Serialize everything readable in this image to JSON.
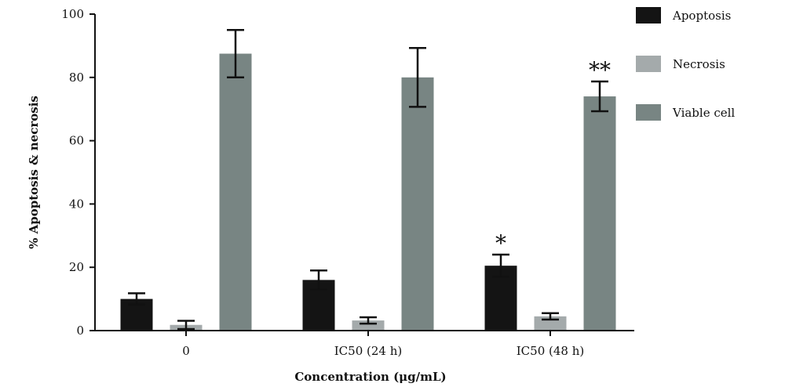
{
  "chart_data": {
    "type": "bar",
    "categories": [
      "0",
      "IC50 (24 h)",
      "IC50 (48 h)"
    ],
    "series": [
      {
        "name": "Apoptosis",
        "color": "#141414",
        "values": [
          10,
          16,
          20.5
        ],
        "errors": [
          1.8,
          3,
          3.5
        ]
      },
      {
        "name": "Necrosis",
        "color": "#a4aaab",
        "values": [
          1.8,
          3.2,
          4.5
        ],
        "errors": [
          1.3,
          1,
          1
        ]
      },
      {
        "name": "Viable cell",
        "color": "#788583",
        "values": [
          87.5,
          80,
          74
        ],
        "errors": [
          7.5,
          9.3,
          4.7
        ]
      }
    ],
    "annotations": [
      {
        "category": "IC50 (48 h)",
        "series": "Apoptosis",
        "text": "*"
      },
      {
        "category": "IC50 (48 h)",
        "series": "Viable cell",
        "text": "**"
      }
    ],
    "xlabel": "Concentration (μg/mL)",
    "ylabel": "% Apoptosis & necrosis",
    "ylim": [
      0,
      100
    ],
    "yticks": [
      0,
      20,
      40,
      60,
      80,
      100
    ],
    "legend_position": "right",
    "grid": false
  }
}
